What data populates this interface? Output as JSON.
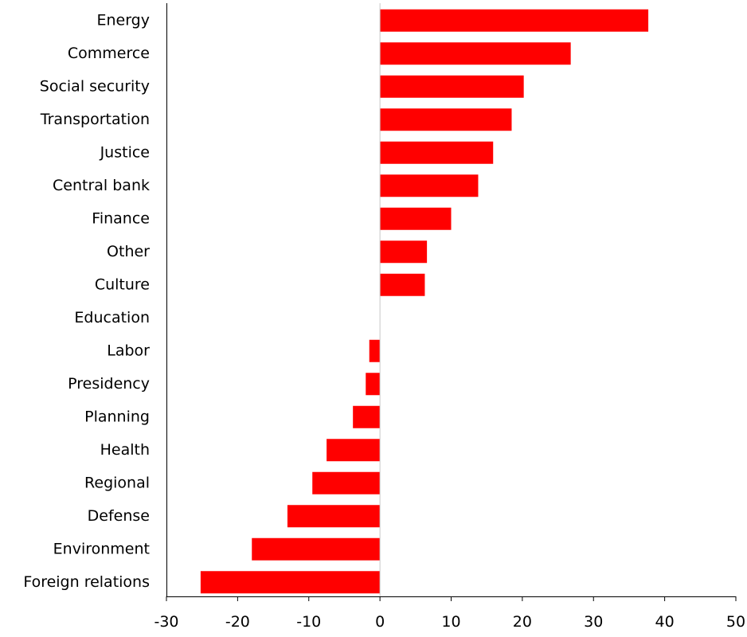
{
  "chart_data": {
    "type": "bar",
    "orientation": "horizontal",
    "title": "",
    "xlabel": "",
    "ylabel": "",
    "categories": [
      "Energy",
      "Commerce",
      "Social security",
      "Transportation",
      "Justice",
      "Central bank",
      "Finance",
      "Other",
      "Culture",
      "Education",
      "Labor",
      "Presidency",
      "Planning",
      "Health",
      "Regional",
      "Defense",
      "Environment",
      "Foreign relations"
    ],
    "values": [
      37.7,
      26.8,
      20.2,
      18.5,
      15.9,
      13.8,
      10.0,
      6.6,
      6.3,
      0,
      -1.5,
      -2.0,
      -3.8,
      -7.5,
      -9.5,
      -13.0,
      -18.0,
      -25.2
    ],
    "xlim": [
      -30,
      50
    ],
    "xticks": [
      "-30",
      "-20",
      "-10",
      "0",
      "10",
      "20",
      "30",
      "40",
      "50"
    ],
    "bar_color": "#ff0000",
    "grid": false,
    "legend": "none"
  }
}
